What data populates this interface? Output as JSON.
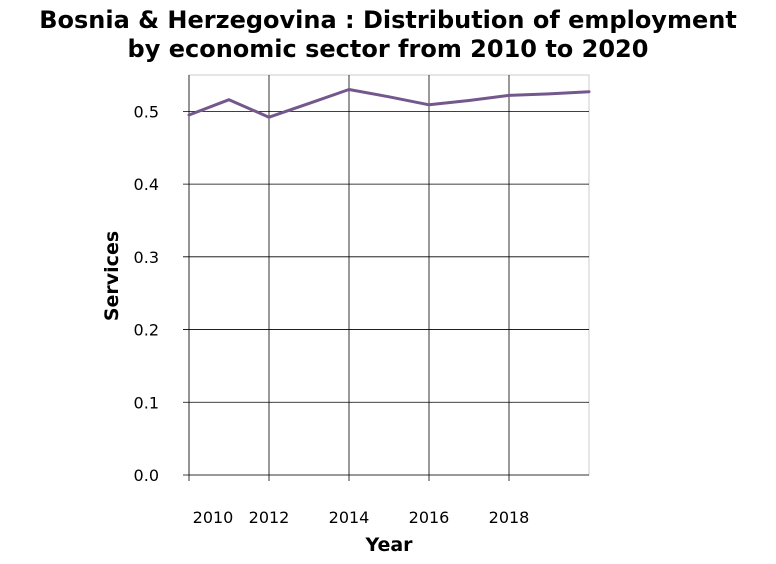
{
  "title_line1": "Bosnia & Herzegovina : Distribution of employment",
  "title_line2": "by economic sector from 2010 to 2020",
  "chart_data": {
    "type": "line",
    "title": "Bosnia & Herzegovina : Distribution of employment by economic sector from 2010 to 2020",
    "xlabel": "Year",
    "ylabel": "Services",
    "xlim": [
      2010,
      2020
    ],
    "ylim": [
      0,
      0.55
    ],
    "x_ticks": [
      2010,
      2012,
      2014,
      2016,
      2018
    ],
    "y_ticks": [
      0.0,
      0.1,
      0.2,
      0.3,
      0.4,
      0.5
    ],
    "grid": true,
    "legend": "none",
    "series": [
      {
        "color": "#74588d",
        "x": [
          2010,
          2011,
          2012,
          2013,
          2014,
          2015,
          2016,
          2017,
          2018,
          2019,
          2020
        ],
        "values": [
          0.495,
          0.516,
          0.492,
          0.511,
          0.53,
          0.52,
          0.509,
          0.515,
          0.522,
          0.524,
          0.527
        ]
      }
    ]
  }
}
